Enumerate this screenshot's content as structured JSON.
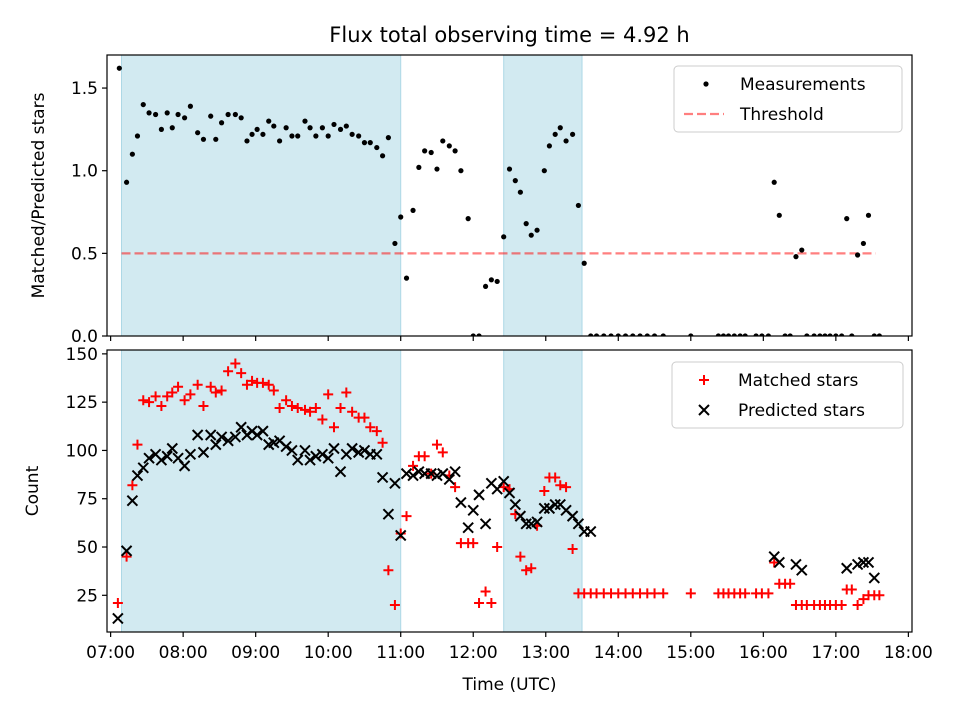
{
  "title": "Flux total observing time = 4.92 h",
  "colors": {
    "shade": "#add8e6",
    "measurement": "#000000",
    "threshold": "#ff0000",
    "matched": "#ff0000",
    "predicted": "#000000"
  },
  "chart_data": [
    {
      "type": "scatter",
      "ylabel": "Matched/Predicted stars",
      "ylim": [
        0,
        1.7
      ],
      "yticks": [
        0.0,
        0.5,
        1.0,
        1.5
      ],
      "ytick_labels": [
        "0.0",
        "0.5",
        "1.0",
        "1.5"
      ],
      "xlim_hours": [
        6.95,
        18.05
      ],
      "xtick_hours": [
        7,
        8,
        9,
        10,
        11,
        12,
        13,
        14,
        15,
        16,
        17,
        18
      ],
      "xtick_labels": [],
      "legend": {
        "placement": "top-right",
        "entries": [
          "Measurements",
          "Threshold"
        ]
      },
      "shaded_intervals_hours": [
        [
          7.15,
          11.0
        ],
        [
          12.42,
          13.5
        ]
      ],
      "threshold": {
        "name": "Threshold",
        "value": 0.5,
        "x_range_hours": [
          7.15,
          17.55
        ],
        "style": "dashed"
      },
      "series": [
        {
          "name": "Measurements",
          "marker": "dot",
          "x_hours": [
            7.12,
            7.22,
            7.3,
            7.37,
            7.45,
            7.53,
            7.62,
            7.7,
            7.78,
            7.85,
            7.93,
            8.02,
            8.1,
            8.2,
            8.28,
            8.38,
            8.45,
            8.53,
            8.62,
            8.72,
            8.8,
            8.88,
            8.95,
            9.02,
            9.1,
            9.18,
            9.25,
            9.33,
            9.42,
            9.5,
            9.58,
            9.68,
            9.75,
            9.83,
            9.92,
            10.0,
            10.08,
            10.17,
            10.25,
            10.33,
            10.42,
            10.5,
            10.58,
            10.67,
            10.75,
            10.83,
            10.92,
            11.0,
            11.08,
            11.17,
            11.25,
            11.33,
            11.42,
            11.5,
            11.58,
            11.67,
            11.75,
            11.83,
            11.93,
            12.0,
            12.08,
            12.17,
            12.25,
            12.33,
            12.42,
            12.5,
            12.58,
            12.65,
            12.73,
            12.8,
            12.88,
            12.98,
            13.05,
            13.13,
            13.2,
            13.28,
            13.37,
            13.45,
            13.53,
            13.62,
            13.7,
            13.8,
            13.9,
            14.0,
            14.1,
            14.2,
            14.3,
            14.4,
            14.5,
            14.62,
            15.0,
            15.38,
            15.45,
            15.52,
            15.6,
            15.68,
            15.75,
            15.9,
            15.98,
            16.07,
            16.15,
            16.22,
            16.3,
            16.37,
            16.45,
            16.53,
            16.6,
            16.7,
            16.78,
            16.85,
            16.92,
            17.0,
            17.08,
            17.15,
            17.22,
            17.3,
            17.38,
            17.45,
            17.53,
            17.6
          ],
          "y": [
            1.62,
            0.93,
            1.1,
            1.21,
            1.4,
            1.35,
            1.34,
            1.25,
            1.35,
            1.26,
            1.34,
            1.32,
            1.39,
            1.23,
            1.19,
            1.33,
            1.19,
            1.29,
            1.34,
            1.34,
            1.32,
            1.18,
            1.22,
            1.25,
            1.22,
            1.3,
            1.27,
            1.18,
            1.26,
            1.21,
            1.21,
            1.3,
            1.26,
            1.21,
            1.26,
            1.21,
            1.28,
            1.25,
            1.27,
            1.22,
            1.21,
            1.17,
            1.17,
            1.14,
            1.09,
            1.2,
            0.56,
            0.72,
            0.35,
            0.76,
            1.02,
            1.12,
            1.11,
            1.01,
            1.18,
            1.15,
            1.12,
            1.0,
            0.71,
            0.0,
            0.0,
            0.3,
            0.34,
            0.33,
            0.6,
            1.01,
            0.94,
            0.87,
            0.68,
            0.61,
            0.64,
            1.0,
            1.15,
            1.22,
            1.26,
            1.18,
            1.22,
            0.79,
            0.44,
            0.0,
            0.0,
            0.0,
            0.0,
            0.0,
            0.0,
            0.0,
            0.0,
            0.0,
            0.0,
            0.0,
            0.0,
            0.0,
            0.0,
            0.0,
            0.0,
            0.0,
            0.0,
            0.0,
            0.0,
            0.0,
            0.93,
            0.73,
            0.0,
            0.0,
            0.48,
            0.52,
            0.0,
            0.0,
            0.0,
            0.0,
            0.0,
            0.0,
            0.0,
            0.71,
            0.0,
            0.49,
            0.56,
            0.73,
            0.0,
            0.0
          ]
        }
      ]
    },
    {
      "type": "scatter",
      "xlabel": "Time (UTC)",
      "ylabel": "Count",
      "ylim": [
        6,
        152
      ],
      "yticks": [
        25,
        50,
        75,
        100,
        125,
        150
      ],
      "ytick_labels": [
        "25",
        "50",
        "75",
        "100",
        "125",
        "150"
      ],
      "xlim_hours": [
        6.95,
        18.05
      ],
      "xtick_hours": [
        7,
        8,
        9,
        10,
        11,
        12,
        13,
        14,
        15,
        16,
        17,
        18
      ],
      "xtick_labels": [
        "07:00",
        "08:00",
        "09:00",
        "10:00",
        "11:00",
        "12:00",
        "13:00",
        "14:00",
        "15:00",
        "16:00",
        "17:00",
        "18:00"
      ],
      "legend": {
        "placement": "top-right",
        "entries": [
          "Matched stars",
          "Predicted stars"
        ]
      },
      "shaded_intervals_hours": [
        [
          7.15,
          11.0
        ],
        [
          12.42,
          13.5
        ]
      ],
      "series": [
        {
          "name": "Matched stars",
          "marker": "plus",
          "x_hours": [
            7.1,
            7.22,
            7.3,
            7.37,
            7.45,
            7.53,
            7.62,
            7.7,
            7.78,
            7.85,
            7.93,
            8.02,
            8.1,
            8.2,
            8.28,
            8.38,
            8.45,
            8.53,
            8.62,
            8.72,
            8.8,
            8.88,
            8.95,
            9.02,
            9.1,
            9.18,
            9.25,
            9.33,
            9.42,
            9.5,
            9.58,
            9.68,
            9.75,
            9.83,
            9.92,
            10.0,
            10.08,
            10.17,
            10.25,
            10.33,
            10.42,
            10.5,
            10.58,
            10.67,
            10.75,
            10.83,
            10.92,
            11.0,
            11.08,
            11.17,
            11.25,
            11.33,
            11.42,
            11.5,
            11.58,
            11.67,
            11.75,
            11.83,
            11.93,
            12.0,
            12.08,
            12.17,
            12.25,
            12.33,
            12.42,
            12.5,
            12.58,
            12.65,
            12.73,
            12.8,
            12.88,
            12.98,
            13.05,
            13.13,
            13.2,
            13.28,
            13.37,
            13.45,
            13.53,
            13.62,
            13.7,
            13.8,
            13.9,
            14.0,
            14.1,
            14.2,
            14.3,
            14.4,
            14.5,
            14.62,
            15.0,
            15.38,
            15.45,
            15.52,
            15.6,
            15.68,
            15.75,
            15.9,
            15.98,
            16.07,
            16.15,
            16.22,
            16.3,
            16.37,
            16.45,
            16.53,
            16.6,
            16.7,
            16.78,
            16.85,
            16.92,
            17.0,
            17.08,
            17.15,
            17.22,
            17.3,
            17.38,
            17.45,
            17.53,
            17.6
          ],
          "y": [
            21,
            45,
            82,
            103,
            126,
            125,
            128,
            123,
            128,
            130,
            133,
            126,
            129,
            134,
            123,
            133,
            130,
            131,
            141,
            145,
            140,
            134,
            136,
            135,
            135,
            134,
            131,
            122,
            126,
            123,
            122,
            121,
            120,
            122,
            116,
            129,
            112,
            122,
            130,
            120,
            117,
            117,
            112,
            110,
            104,
            38,
            20,
            57,
            66,
            92,
            97,
            97,
            88,
            103,
            99,
            87,
            81,
            52,
            52,
            52,
            21,
            27,
            21,
            50,
            81,
            80,
            67,
            45,
            38,
            39,
            61,
            79,
            86,
            86,
            82,
            81,
            49,
            26,
            26,
            26,
            26,
            26,
            26,
            26,
            26,
            26,
            26,
            26,
            26,
            26,
            26,
            26,
            26,
            26,
            26,
            26,
            26,
            26,
            26,
            26,
            42,
            31,
            31,
            31,
            20,
            20,
            20,
            20,
            20,
            20,
            20,
            20,
            20,
            28,
            28,
            20,
            23,
            25,
            25,
            25
          ]
        },
        {
          "name": "Predicted stars",
          "marker": "x",
          "x_hours": [
            7.1,
            7.22,
            7.3,
            7.37,
            7.45,
            7.53,
            7.62,
            7.7,
            7.78,
            7.85,
            7.93,
            8.02,
            8.1,
            8.2,
            8.28,
            8.38,
            8.45,
            8.53,
            8.62,
            8.72,
            8.8,
            8.88,
            8.95,
            9.02,
            9.1,
            9.18,
            9.25,
            9.33,
            9.42,
            9.5,
            9.58,
            9.68,
            9.75,
            9.83,
            9.92,
            10.0,
            10.08,
            10.17,
            10.25,
            10.33,
            10.42,
            10.5,
            10.58,
            10.67,
            10.75,
            10.83,
            10.92,
            11.0,
            11.08,
            11.17,
            11.25,
            11.33,
            11.42,
            11.5,
            11.58,
            11.67,
            11.75,
            11.83,
            11.93,
            12.0,
            12.08,
            12.17,
            12.25,
            12.33,
            12.42,
            12.5,
            12.58,
            12.65,
            12.73,
            12.8,
            12.88,
            12.98,
            13.05,
            13.13,
            13.2,
            13.28,
            13.37,
            13.45,
            13.53,
            13.62,
            16.15,
            16.22,
            16.45,
            16.53,
            17.15,
            17.3,
            17.38,
            17.45,
            17.53
          ],
          "y": [
            13,
            48,
            74,
            87,
            91,
            96,
            98,
            95,
            97,
            101,
            96,
            92,
            98,
            108,
            99,
            108,
            103,
            107,
            105,
            107,
            112,
            108,
            110,
            108,
            110,
            103,
            104,
            105,
            102,
            100,
            95,
            100,
            95,
            97,
            98,
            96,
            101,
            89,
            98,
            101,
            99,
            100,
            98,
            98,
            86,
            67,
            83,
            56,
            88,
            87,
            89,
            88,
            88,
            87,
            88,
            85,
            89,
            73,
            60,
            69,
            77,
            62,
            83,
            80,
            84,
            78,
            72,
            66,
            62,
            62,
            63,
            70,
            70,
            72,
            72,
            69,
            66,
            62,
            58,
            58,
            45,
            42,
            41,
            38,
            39,
            41,
            42,
            42,
            34
          ]
        }
      ]
    }
  ]
}
